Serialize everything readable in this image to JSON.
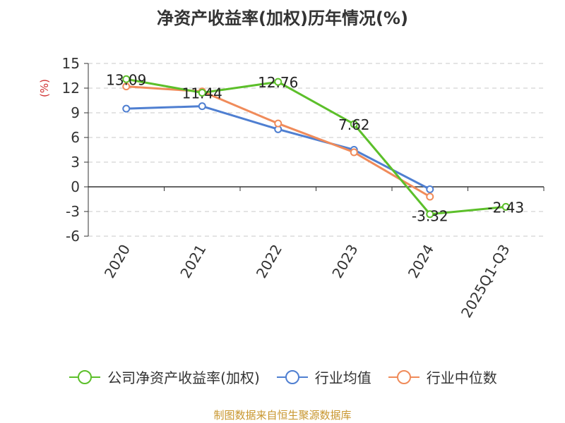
{
  "chart_data": {
    "type": "line",
    "title": "净资产收益率(加权)历年情况(%)",
    "ylabel": "(%)",
    "xlabel": "",
    "categories": [
      "2020",
      "2021",
      "2022",
      "2023",
      "2024",
      "2025Q1-Q3"
    ],
    "yticks": [
      15,
      12,
      9,
      6,
      3,
      0,
      -3,
      -6
    ],
    "ylim": [
      -6,
      15
    ],
    "grid": true,
    "legend_position": "bottom",
    "series": [
      {
        "name": "公司净资产收益率(加权)",
        "color": "#5cbf2a",
        "values": [
          13.09,
          11.44,
          12.76,
          7.62,
          -3.32,
          -2.43
        ],
        "labels": [
          "13.09",
          "11.44",
          "12.76",
          "7.62",
          "-3.32",
          "-2.43"
        ]
      },
      {
        "name": "行业均值",
        "color": "#4f7fd1",
        "values": [
          9.5,
          9.8,
          7.0,
          4.5,
          -0.3,
          null
        ]
      },
      {
        "name": "行业中位数",
        "color": "#f08b5a",
        "values": [
          12.2,
          11.6,
          7.7,
          4.2,
          -1.2,
          null
        ]
      }
    ]
  },
  "source": "制图数据来自恒生聚源数据库"
}
